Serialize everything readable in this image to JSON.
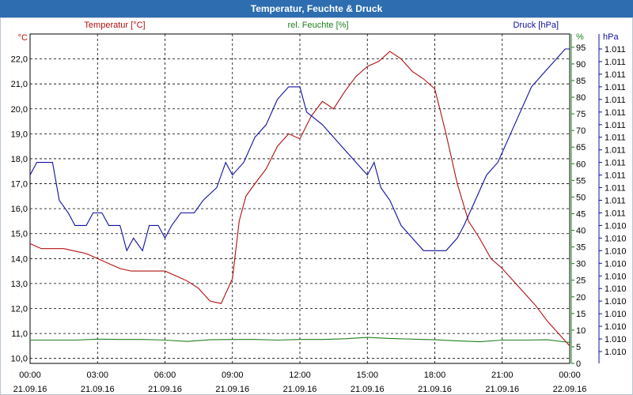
{
  "window": {
    "title": "Temperatur, Feuchte & Druck"
  },
  "chart_data": {
    "type": "line",
    "title": "Temperatur, Feuchte & Druck",
    "x_ticks": [
      {
        "time": "00:00",
        "date": "21.09.16"
      },
      {
        "time": "03:00",
        "date": "21.09.16"
      },
      {
        "time": "06:00",
        "date": "21.09.16"
      },
      {
        "time": "09:00",
        "date": "21.09.16"
      },
      {
        "time": "12:00",
        "date": "21.09.16"
      },
      {
        "time": "15:00",
        "date": "21.09.16"
      },
      {
        "time": "18:00",
        "date": "21.09.16"
      },
      {
        "time": "21:00",
        "date": "21.09.16"
      },
      {
        "time": "00:00",
        "date": "22.09.16"
      }
    ],
    "xlim_hours": [
      0,
      24
    ],
    "axes": {
      "temperature": {
        "unit": "°C",
        "ylim": [
          9.8,
          23.0
        ],
        "ticks": [
          "10,0",
          "11,0",
          "12,0",
          "13,0",
          "14,0",
          "15,0",
          "16,0",
          "17,0",
          "18,0",
          "19,0",
          "20,0",
          "21,0",
          "22,0"
        ],
        "tick_values": [
          10,
          11,
          12,
          13,
          14,
          15,
          16,
          17,
          18,
          19,
          20,
          21,
          22
        ]
      },
      "humidity": {
        "unit": "%",
        "ylim": [
          0,
          99
        ],
        "ticks": [
          "0",
          "5",
          "10",
          "15",
          "20",
          "25",
          "30",
          "35",
          "40",
          "45",
          "50",
          "55",
          "60",
          "65",
          "70",
          "75",
          "80",
          "85",
          "90",
          "95"
        ],
        "tick_values": [
          0,
          5,
          10,
          15,
          20,
          25,
          30,
          35,
          40,
          45,
          50,
          55,
          60,
          65,
          70,
          75,
          80,
          85,
          90,
          95
        ]
      },
      "pressure": {
        "unit": "hPa",
        "tick_labels": [
          "1.010",
          "1.010",
          "1.010",
          "1.010",
          "1.010",
          "1.010",
          "1.010",
          "1.010",
          "1.010",
          "1.010",
          "1.010",
          "1.011",
          "1.011",
          "1.011",
          "1.011",
          "1.011",
          "1.011",
          "1.011",
          "1.011",
          "1.011",
          "1.011",
          "1.011",
          "1.011",
          "1.011",
          "1.011"
        ]
      }
    },
    "series": [
      {
        "name": "Temperatur [°C]",
        "color": "#b01010",
        "axis": "temperature",
        "points": [
          [
            0,
            14.6
          ],
          [
            0.5,
            14.4
          ],
          [
            1.0,
            14.4
          ],
          [
            1.5,
            14.4
          ],
          [
            2.0,
            14.3
          ],
          [
            2.5,
            14.2
          ],
          [
            3.0,
            14.0
          ],
          [
            3.5,
            13.8
          ],
          [
            4.0,
            13.6
          ],
          [
            4.5,
            13.5
          ],
          [
            5.0,
            13.5
          ],
          [
            5.5,
            13.5
          ],
          [
            6.0,
            13.5
          ],
          [
            6.5,
            13.3
          ],
          [
            7.0,
            13.1
          ],
          [
            7.5,
            12.8
          ],
          [
            8.0,
            12.3
          ],
          [
            8.5,
            12.2
          ],
          [
            9.0,
            13.2
          ],
          [
            9.3,
            15.5
          ],
          [
            9.6,
            16.5
          ],
          [
            10.0,
            17.0
          ],
          [
            10.5,
            17.6
          ],
          [
            11.0,
            18.5
          ],
          [
            11.5,
            19.0
          ],
          [
            12.0,
            18.8
          ],
          [
            12.5,
            19.7
          ],
          [
            13.0,
            20.3
          ],
          [
            13.5,
            20.0
          ],
          [
            14.0,
            20.7
          ],
          [
            14.5,
            21.3
          ],
          [
            15.0,
            21.7
          ],
          [
            15.5,
            21.9
          ],
          [
            16.0,
            22.3
          ],
          [
            16.5,
            22.0
          ],
          [
            17.0,
            21.5
          ],
          [
            17.5,
            21.2
          ],
          [
            18.0,
            20.8
          ],
          [
            18.5,
            19.0
          ],
          [
            19.0,
            17.0
          ],
          [
            19.5,
            15.5
          ],
          [
            20.0,
            14.8
          ],
          [
            20.5,
            14.0
          ],
          [
            21.0,
            13.6
          ],
          [
            21.5,
            13.1
          ],
          [
            22.0,
            12.6
          ],
          [
            22.5,
            12.1
          ],
          [
            23.0,
            11.5
          ],
          [
            23.5,
            11.0
          ],
          [
            24.0,
            10.5
          ]
        ]
      },
      {
        "name": "rel. Feuchte [%]",
        "color": "#208020",
        "axis": "humidity",
        "points": [
          [
            0,
            7
          ],
          [
            1,
            7
          ],
          [
            2,
            7
          ],
          [
            3,
            7.3
          ],
          [
            4,
            7.2
          ],
          [
            5,
            7.2
          ],
          [
            6,
            7
          ],
          [
            7,
            6.6
          ],
          [
            8,
            7.1
          ],
          [
            9,
            7.2
          ],
          [
            10,
            7.2
          ],
          [
            11,
            7
          ],
          [
            12,
            7.2
          ],
          [
            13,
            7.2
          ],
          [
            14,
            7.4
          ],
          [
            15,
            7.8
          ],
          [
            16,
            7.5
          ],
          [
            17,
            7.3
          ],
          [
            18,
            7.1
          ],
          [
            19,
            6.8
          ],
          [
            20,
            6.5
          ],
          [
            21,
            7
          ],
          [
            22,
            7
          ],
          [
            23,
            7.1
          ],
          [
            24,
            6.3
          ]
        ]
      },
      {
        "name": "Druck [hPa]",
        "color": "#1010a0",
        "axis": "pressure",
        "values_in_axis_steps": true,
        "points": [
          [
            0,
            14
          ],
          [
            0.3,
            15
          ],
          [
            1.0,
            15
          ],
          [
            1.3,
            12
          ],
          [
            1.7,
            11
          ],
          [
            2.0,
            10
          ],
          [
            2.5,
            10
          ],
          [
            2.8,
            11
          ],
          [
            3.2,
            11
          ],
          [
            3.5,
            10
          ],
          [
            4.0,
            10
          ],
          [
            4.3,
            8
          ],
          [
            4.6,
            9
          ],
          [
            5.0,
            8
          ],
          [
            5.3,
            10
          ],
          [
            5.7,
            10
          ],
          [
            6.0,
            9
          ],
          [
            6.3,
            10
          ],
          [
            6.7,
            11
          ],
          [
            7.3,
            11
          ],
          [
            7.7,
            12
          ],
          [
            8.3,
            13
          ],
          [
            8.7,
            15
          ],
          [
            9.0,
            14
          ],
          [
            9.5,
            15
          ],
          [
            10.0,
            17
          ],
          [
            10.5,
            18
          ],
          [
            11.0,
            20
          ],
          [
            11.5,
            21
          ],
          [
            12.0,
            21
          ],
          [
            12.3,
            19
          ],
          [
            13.0,
            18
          ],
          [
            13.5,
            17
          ],
          [
            14.0,
            16
          ],
          [
            14.5,
            15
          ],
          [
            15.0,
            14
          ],
          [
            15.3,
            15
          ],
          [
            15.6,
            13
          ],
          [
            16.0,
            12
          ],
          [
            16.5,
            10
          ],
          [
            17.0,
            9
          ],
          [
            17.5,
            8
          ],
          [
            18.0,
            8
          ],
          [
            18.5,
            8
          ],
          [
            19.0,
            9
          ],
          [
            19.3,
            10
          ],
          [
            19.8,
            12
          ],
          [
            20.3,
            14
          ],
          [
            20.8,
            15
          ],
          [
            21.3,
            17
          ],
          [
            21.8,
            19
          ],
          [
            22.3,
            21
          ],
          [
            22.8,
            22
          ],
          [
            23.3,
            23
          ],
          [
            23.8,
            24
          ],
          [
            24.0,
            24
          ]
        ]
      }
    ]
  }
}
